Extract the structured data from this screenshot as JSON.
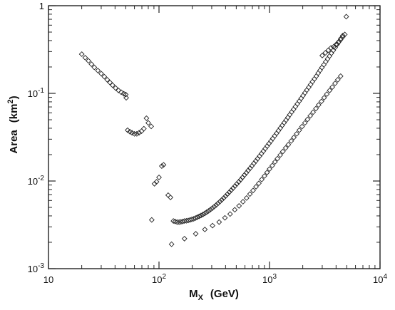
{
  "chart_data": {
    "type": "scatter",
    "title": "",
    "xlabel": {
      "main": "M",
      "sub": "X",
      "unit": "(GeV)"
    },
    "ylabel": {
      "main": "Area",
      "unit": "(km",
      "sup": "2",
      "close": ")"
    },
    "xscale": "log",
    "yscale": "log",
    "xlim": [
      10,
      10000
    ],
    "ylim": [
      0.001,
      1
    ],
    "grid": false,
    "marker": "diamond",
    "x_ticks": [
      {
        "value": 10,
        "base": "10",
        "exp": ""
      },
      {
        "value": 100,
        "base": "10",
        "exp": "2"
      },
      {
        "value": 1000,
        "base": "10",
        "exp": "3"
      },
      {
        "value": 10000,
        "base": "10",
        "exp": "4"
      }
    ],
    "y_ticks": [
      {
        "value": 0.001,
        "base": "10",
        "exp": "-3"
      },
      {
        "value": 0.01,
        "base": "10",
        "exp": "-2"
      },
      {
        "value": 0.1,
        "base": "10",
        "exp": "-1"
      },
      {
        "value": 1,
        "base": "1",
        "exp": ""
      }
    ],
    "series": [
      {
        "points": [
          [
            20,
            0.28
          ],
          [
            21.5,
            0.255
          ],
          [
            23,
            0.235
          ],
          [
            24.5,
            0.215
          ],
          [
            26,
            0.198
          ],
          [
            28,
            0.182
          ],
          [
            30,
            0.168
          ],
          [
            32,
            0.155
          ],
          [
            34,
            0.143
          ],
          [
            36,
            0.133
          ],
          [
            38,
            0.124
          ],
          [
            40.5,
            0.115
          ],
          [
            43,
            0.108
          ],
          [
            45.5,
            0.103
          ],
          [
            48,
            0.099
          ],
          [
            50,
            0.097
          ],
          [
            50.5,
            0.089
          ],
          [
            52,
            0.038
          ],
          [
            54.5,
            0.0365
          ],
          [
            57,
            0.0355
          ],
          [
            60,
            0.0345
          ],
          [
            63,
            0.0345
          ],
          [
            66,
            0.0355
          ],
          [
            69.5,
            0.037
          ],
          [
            73,
            0.0395
          ],
          [
            77,
            0.052
          ],
          [
            80,
            0.046
          ],
          [
            85,
            0.042
          ],
          [
            86,
            0.0036
          ],
          [
            91,
            0.0093
          ],
          [
            95,
            0.0098
          ],
          [
            100,
            0.011
          ],
          [
            106,
            0.0148
          ],
          [
            110,
            0.0153
          ],
          [
            121,
            0.0069
          ],
          [
            127,
            0.0065
          ],
          [
            130,
            0.0019
          ],
          [
            135,
            0.0035
          ],
          [
            140,
            0.00345
          ],
          [
            146,
            0.0034
          ],
          [
            152,
            0.0034
          ],
          [
            158,
            0.00342
          ],
          [
            164,
            0.00345
          ],
          [
            170,
            0.0035
          ],
          [
            177,
            0.00352
          ],
          [
            184,
            0.00355
          ],
          [
            191,
            0.0036
          ],
          [
            198,
            0.00365
          ],
          [
            206,
            0.0037
          ],
          [
            214,
            0.00378
          ],
          [
            222,
            0.00386
          ],
          [
            231,
            0.00395
          ],
          [
            240,
            0.00405
          ],
          [
            250,
            0.00415
          ],
          [
            260,
            0.00428
          ],
          [
            270,
            0.00441
          ],
          [
            281,
            0.00456
          ],
          [
            292,
            0.00472
          ],
          [
            304,
            0.0049
          ],
          [
            316,
            0.0051
          ],
          [
            329,
            0.00532
          ],
          [
            342,
            0.00556
          ],
          [
            356,
            0.00582
          ],
          [
            370,
            0.0061
          ],
          [
            385,
            0.0064
          ],
          [
            400,
            0.00672
          ],
          [
            416,
            0.00708
          ],
          [
            433,
            0.00746
          ],
          [
            450,
            0.00786
          ],
          [
            468,
            0.0083
          ],
          [
            487,
            0.00877
          ],
          [
            506,
            0.00926
          ],
          [
            527,
            0.00979
          ],
          [
            548,
            0.01036
          ],
          [
            570,
            0.011
          ],
          [
            593,
            0.0117
          ],
          [
            617,
            0.0124
          ],
          [
            641,
            0.0132
          ],
          [
            667,
            0.014
          ],
          [
            694,
            0.0149
          ],
          [
            722,
            0.0159
          ],
          [
            751,
            0.0169
          ],
          [
            781,
            0.018
          ],
          [
            812,
            0.0192
          ],
          [
            845,
            0.0205
          ],
          [
            879,
            0.0219
          ],
          [
            914,
            0.0234
          ],
          [
            951,
            0.025
          ],
          [
            989,
            0.0267
          ],
          [
            1029,
            0.0285
          ],
          [
            1070,
            0.0305
          ],
          [
            1113,
            0.0327
          ],
          [
            1158,
            0.035
          ],
          [
            1204,
            0.0375
          ],
          [
            1253,
            0.0402
          ],
          [
            1303,
            0.0431
          ],
          [
            1355,
            0.0462
          ],
          [
            1410,
            0.0495
          ],
          [
            1466,
            0.0531
          ],
          [
            1525,
            0.057
          ],
          [
            1587,
            0.0612
          ],
          [
            1650,
            0.0657
          ],
          [
            1717,
            0.0706
          ],
          [
            1786,
            0.0758
          ],
          [
            1858,
            0.0815
          ],
          [
            1932,
            0.0876
          ],
          [
            2010,
            0.0942
          ],
          [
            2091,
            0.1013
          ],
          [
            2175,
            0.109
          ],
          [
            2262,
            0.117
          ],
          [
            2353,
            0.126
          ],
          [
            2448,
            0.136
          ],
          [
            2546,
            0.146
          ],
          [
            2649,
            0.157
          ],
          [
            2755,
            0.17
          ],
          [
            2866,
            0.183
          ],
          [
            2981,
            0.197
          ],
          [
            3101,
            0.212
          ],
          [
            3226,
            0.229
          ],
          [
            3355,
            0.247
          ],
          [
            3490,
            0.266
          ],
          [
            3631,
            0.287
          ],
          [
            3777,
            0.31
          ],
          [
            3929,
            0.334
          ],
          [
            4087,
            0.361
          ],
          [
            4251,
            0.39
          ],
          [
            4422,
            0.422
          ],
          [
            4600,
            0.456
          ],
          [
            170,
            0.0022
          ],
          [
            215,
            0.0025
          ],
          [
            260,
            0.0028
          ],
          [
            305,
            0.0031
          ],
          [
            350,
            0.0034
          ],
          [
            395,
            0.0038
          ],
          [
            440,
            0.0042
          ],
          [
            485,
            0.0047
          ],
          [
            530,
            0.0052
          ],
          [
            575,
            0.0058
          ],
          [
            620,
            0.0064
          ],
          [
            665,
            0.0071
          ],
          [
            710,
            0.0078
          ],
          [
            755,
            0.0086
          ],
          [
            800,
            0.0094
          ],
          [
            850,
            0.0104
          ],
          [
            900,
            0.0114
          ],
          [
            950,
            0.0125
          ],
          [
            1000,
            0.0137
          ],
          [
            1060,
            0.015
          ],
          [
            1120,
            0.0165
          ],
          [
            1180,
            0.018
          ],
          [
            1250,
            0.0198
          ],
          [
            1320,
            0.0217
          ],
          [
            1400,
            0.0238
          ],
          [
            1480,
            0.026
          ],
          [
            1570,
            0.0286
          ],
          [
            1660,
            0.0314
          ],
          [
            1760,
            0.0345
          ],
          [
            1860,
            0.038
          ],
          [
            1970,
            0.0418
          ],
          [
            2090,
            0.046
          ],
          [
            2210,
            0.0505
          ],
          [
            2340,
            0.0555
          ],
          [
            2480,
            0.061
          ],
          [
            2630,
            0.067
          ],
          [
            2780,
            0.0737
          ],
          [
            2950,
            0.081
          ],
          [
            3120,
            0.0891
          ],
          [
            3300,
            0.098
          ],
          [
            3500,
            0.108
          ],
          [
            3700,
            0.118
          ],
          [
            3920,
            0.13
          ],
          [
            4150,
            0.143
          ],
          [
            4400,
            0.157
          ],
          [
            3000,
            0.27
          ],
          [
            3200,
            0.29
          ],
          [
            3400,
            0.31
          ],
          [
            3600,
            0.33
          ],
          [
            3800,
            0.34
          ],
          [
            4000,
            0.36
          ],
          [
            4200,
            0.38
          ],
          [
            4400,
            0.41
          ],
          [
            4600,
            0.44
          ],
          [
            4800,
            0.47
          ],
          [
            4950,
            0.75
          ]
        ]
      }
    ]
  }
}
